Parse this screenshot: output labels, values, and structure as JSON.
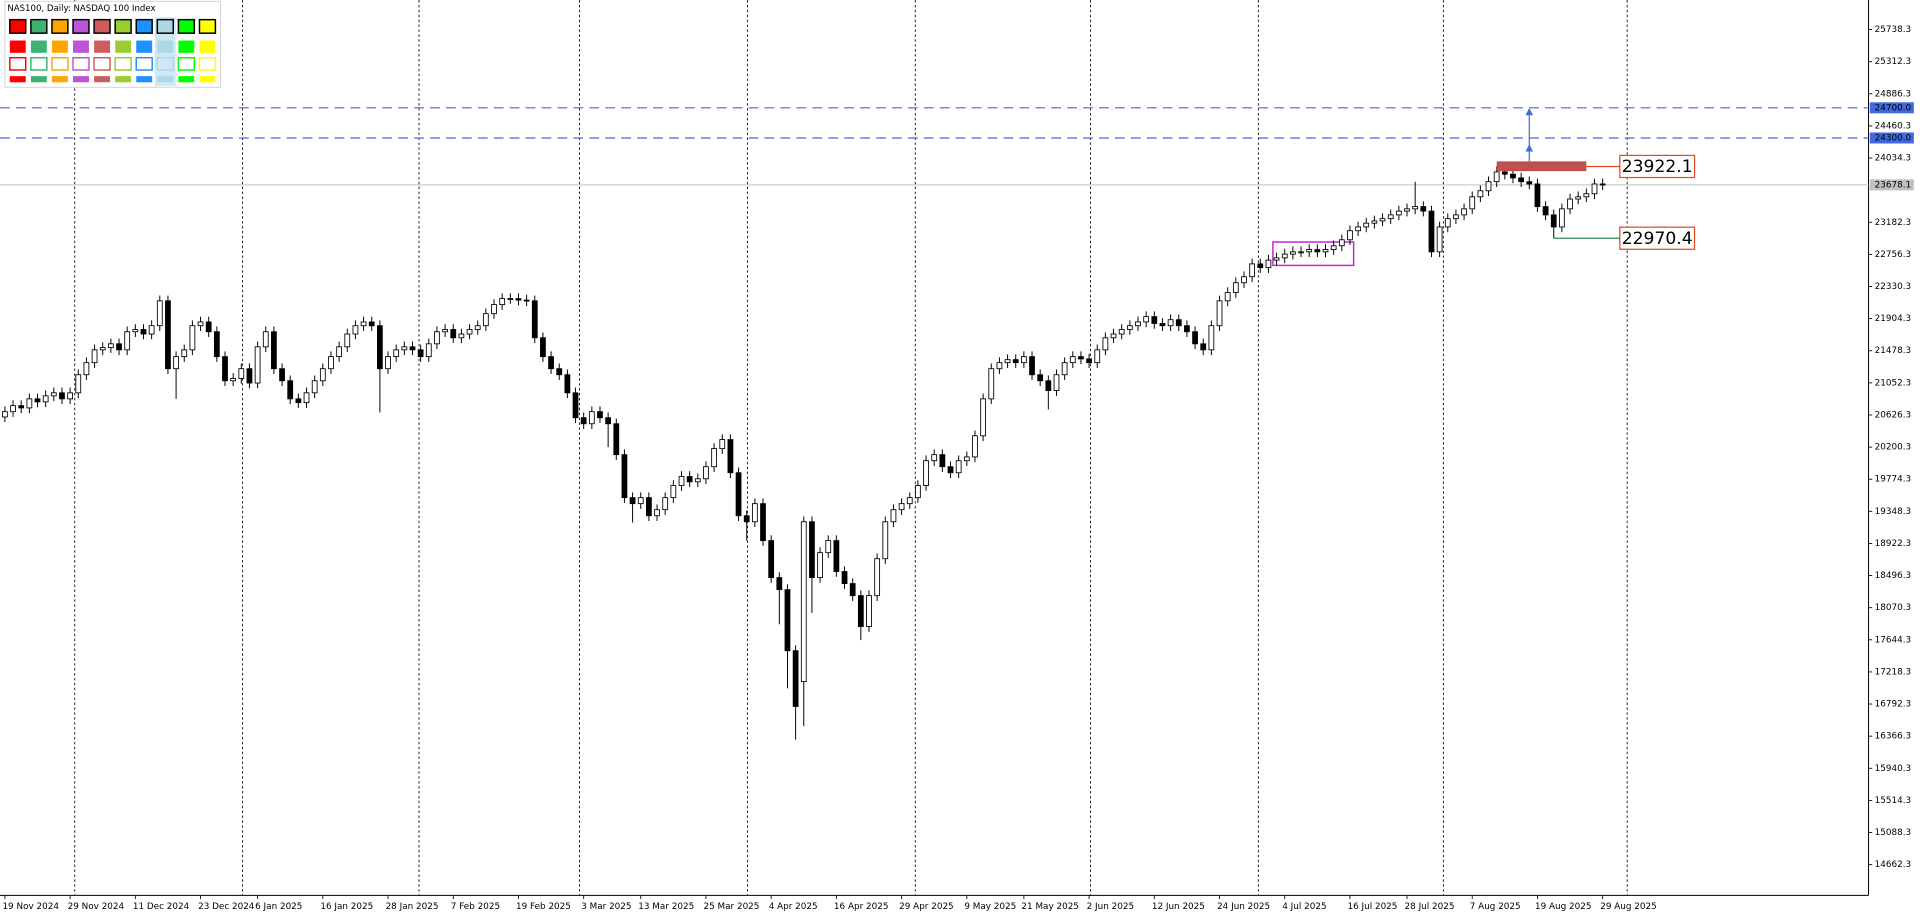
{
  "chart_data": {
    "type": "candlestick",
    "title": "NAS100, Daily: NASDAQ 100 Index",
    "categories": [
      "19 Nov 2024",
      null,
      null,
      null,
      null,
      null,
      null,
      null,
      "29 Nov 2024",
      null,
      null,
      null,
      null,
      null,
      null,
      null,
      "11 Dec 2024",
      null,
      null,
      null,
      null,
      null,
      null,
      null,
      "23 Dec 2024",
      null,
      null,
      null,
      null,
      null,
      null,
      "6 Jan 2025",
      null,
      null,
      null,
      null,
      null,
      null,
      null,
      "16 Jan 2025",
      null,
      null,
      null,
      null,
      null,
      null,
      null,
      "28 Jan 2025",
      null,
      null,
      null,
      null,
      null,
      null,
      null,
      "7 Feb 2025",
      null,
      null,
      null,
      null,
      null,
      null,
      null,
      "19 Feb 2025",
      null,
      null,
      null,
      null,
      null,
      null,
      null,
      "3 Mar 2025",
      null,
      null,
      null,
      null,
      null,
      null,
      "13 Mar 2025",
      null,
      null,
      null,
      null,
      null,
      null,
      null,
      "25 Mar 2025",
      null,
      null,
      null,
      null,
      null,
      null,
      null,
      "4 Apr 2025",
      null,
      null,
      null,
      null,
      null,
      null,
      null,
      "16 Apr 2025",
      null,
      null,
      null,
      null,
      null,
      null,
      null,
      "29 Apr 2025",
      null,
      null,
      null,
      null,
      null,
      null,
      null,
      "9 May 2025",
      null,
      null,
      null,
      null,
      null,
      null,
      "21 May 2025",
      null,
      null,
      null,
      null,
      null,
      null,
      null,
      "2 Jun 2025",
      null,
      null,
      null,
      null,
      null,
      null,
      null,
      "12 Jun 2025",
      null,
      null,
      null,
      null,
      null,
      null,
      null,
      "24 Jun 2025",
      null,
      null,
      null,
      null,
      null,
      null,
      null,
      "4 Jul 2025",
      null,
      null,
      null,
      null,
      null,
      null,
      null,
      "16 Jul 2025",
      null,
      null,
      null,
      null,
      null,
      null,
      "28 Jul 2025",
      null,
      null,
      null,
      null,
      null,
      null,
      null,
      "7 Aug 2025",
      null,
      null,
      null,
      null,
      null,
      null,
      null,
      "19 Aug 2025",
      null,
      null,
      null,
      null,
      null,
      null,
      null,
      "29 Aug 2025"
    ],
    "open": [
      20600,
      20670,
      20750,
      20720,
      20840,
      20800,
      20880,
      20920,
      20840,
      20920,
      21160,
      21320,
      21490,
      21520,
      21570,
      21490,
      21730,
      21760,
      21700,
      21810,
      22140,
      21240,
      21400,
      21490,
      21810,
      21860,
      21730,
      21400,
      21080,
      21110,
      21240,
      21050,
      21530,
      21730,
      21240,
      21080,
      20840,
      20790,
      20920,
      21080,
      21240,
      21400,
      21530,
      21700,
      21810,
      21860,
      21810,
      21240,
      21400,
      21490,
      21530,
      21490,
      21400,
      21570,
      21730,
      21760,
      21650,
      21700,
      21760,
      21810,
      21970,
      22090,
      22170,
      22170,
      22150,
      22140,
      21650,
      21400,
      21240,
      21160,
      20920,
      20590,
      20510,
      20670,
      20590,
      20510,
      20100,
      19530,
      19450,
      19530,
      19290,
      19370,
      19530,
      19690,
      19810,
      19740,
      19780,
      19940,
      20180,
      20300,
      19860,
      19290,
      19210,
      19450,
      18960,
      18470,
      18310,
      17500,
      17090,
      19210,
      18470,
      18800,
      18960,
      18550,
      18390,
      18230,
      17820,
      18230,
      18720,
      19210,
      19370,
      19450,
      19530,
      19690,
      20020,
      20100,
      19940,
      19860,
      20020,
      20070,
      20350,
      20840,
      21240,
      21320,
      21360,
      21320,
      21400,
      21160,
      21080,
      20950,
      21160,
      21320,
      21400,
      21370,
      21320,
      21490,
      21650,
      21700,
      21760,
      21810,
      21860,
      21930,
      21840,
      21810,
      21890,
      21810,
      21730,
      21570,
      21490,
      21810,
      22140,
      22250,
      22380,
      22460,
      22630,
      22580,
      22680,
      22710,
      22760,
      22790,
      22790,
      22820,
      22790,
      22820,
      22870,
      22950,
      23070,
      23120,
      23170,
      23200,
      23230,
      23280,
      23330,
      23360,
      23390,
      23330,
      22790,
      23120,
      23230,
      23280,
      23360,
      23520,
      23600,
      23720,
      23850,
      23820,
      23770,
      23720,
      23690,
      23390,
      23280,
      23120,
      23360,
      23490,
      23520,
      23560,
      23690
    ],
    "high": [
      20740,
      20820,
      20820,
      20910,
      20910,
      20950,
      20990,
      20990,
      20990,
      21230,
      21390,
      21560,
      21590,
      21640,
      21640,
      21800,
      21830,
      21830,
      21880,
      22210,
      22210,
      21470,
      21560,
      21880,
      21930,
      21930,
      21800,
      21470,
      21180,
      21310,
      21310,
      21600,
      21800,
      21800,
      21310,
      21150,
      20910,
      20990,
      21150,
      21310,
      21470,
      21600,
      21770,
      21880,
      21930,
      21930,
      21880,
      21470,
      21560,
      21600,
      21600,
      21560,
      21640,
      21800,
      21830,
      21830,
      21770,
      21830,
      21880,
      22040,
      22160,
      22240,
      22240,
      22240,
      22220,
      22210,
      21720,
      21470,
      21310,
      21230,
      20990,
      20660,
      20740,
      20740,
      20660,
      20580,
      20170,
      19600,
      19600,
      19600,
      19440,
      19600,
      19760,
      19880,
      19880,
      19850,
      20010,
      20250,
      20370,
      20370,
      19930,
      19360,
      19520,
      19520,
      19030,
      18540,
      18380,
      17570,
      19280,
      19280,
      18870,
      19030,
      19030,
      18620,
      18460,
      18300,
      18300,
      18790,
      19280,
      19440,
      19520,
      19600,
      19760,
      20090,
      20170,
      20170,
      20010,
      20090,
      20140,
      20420,
      20910,
      21310,
      21390,
      21430,
      21430,
      21470,
      21470,
      21230,
      21150,
      21230,
      21390,
      21470,
      21470,
      21440,
      21560,
      21720,
      21770,
      21830,
      21880,
      21930,
      22000,
      22000,
      21910,
      21960,
      21960,
      21880,
      21800,
      21640,
      21880,
      22210,
      22320,
      22450,
      22530,
      22700,
      22700,
      22750,
      22780,
      22830,
      22860,
      22860,
      22890,
      22890,
      22890,
      22940,
      23020,
      23140,
      23190,
      23240,
      23270,
      23300,
      23350,
      23400,
      23430,
      23720,
      23460,
      23400,
      23190,
      23300,
      23350,
      23430,
      23590,
      23670,
      23790,
      23920,
      23920,
      23890,
      23840,
      23790,
      23760,
      23460,
      23350,
      23430,
      23560,
      23590,
      23630,
      23760,
      23760
    ],
    "low": [
      20530,
      20600,
      20650,
      20650,
      20730,
      20730,
      20810,
      20770,
      20770,
      20850,
      21090,
      21250,
      21420,
      21450,
      21420,
      21420,
      21660,
      21630,
      21630,
      21740,
      21170,
      20840,
      21330,
      21420,
      21740,
      21660,
      21330,
      21010,
      21010,
      21040,
      20980,
      20980,
      21460,
      21170,
      21010,
      20770,
      20720,
      20720,
      20850,
      21010,
      21170,
      21330,
      21460,
      21630,
      21740,
      21740,
      20660,
      21170,
      21330,
      21420,
      21420,
      21330,
      21330,
      21500,
      21660,
      21580,
      21580,
      21630,
      21690,
      21740,
      21900,
      22020,
      22100,
      22080,
      22070,
      21580,
      21330,
      21170,
      21090,
      20850,
      20520,
      20440,
      20440,
      20520,
      20200,
      20030,
      19460,
      19200,
      19380,
      19220,
      19220,
      19300,
      19460,
      19620,
      19670,
      19670,
      19710,
      19870,
      20110,
      19790,
      19220,
      18960,
      19140,
      18890,
      18400,
      17850,
      17000,
      16320,
      16500,
      18000,
      18400,
      18730,
      18480,
      18320,
      18160,
      17640,
      17750,
      18160,
      18650,
      19140,
      19300,
      19380,
      19460,
      19620,
      19950,
      19870,
      19790,
      19790,
      19950,
      20000,
      20280,
      20770,
      21170,
      21250,
      21250,
      21250,
      21090,
      21010,
      20700,
      20880,
      21090,
      21250,
      21300,
      21250,
      21250,
      21420,
      21580,
      21630,
      21690,
      21740,
      21790,
      21770,
      21740,
      21740,
      21740,
      21660,
      21500,
      21420,
      21420,
      21740,
      22070,
      22180,
      22310,
      22390,
      22510,
      22510,
      22610,
      22640,
      22690,
      22720,
      22720,
      22720,
      22720,
      22750,
      22800,
      22880,
      23000,
      23050,
      23100,
      23130,
      23160,
      23210,
      23260,
      23290,
      23260,
      22720,
      22720,
      23050,
      23160,
      23210,
      23290,
      23450,
      23530,
      23650,
      23750,
      23700,
      23650,
      23620,
      23320,
      23210,
      22970,
      23050,
      23290,
      23420,
      23450,
      23490,
      23610
    ],
    "close": [
      20670,
      20750,
      20720,
      20840,
      20800,
      20880,
      20920,
      20840,
      20920,
      21160,
      21320,
      21490,
      21520,
      21570,
      21490,
      21730,
      21760,
      21700,
      21810,
      22140,
      21240,
      21400,
      21490,
      21810,
      21860,
      21730,
      21400,
      21080,
      21110,
      21240,
      21050,
      21530,
      21730,
      21240,
      21080,
      20840,
      20790,
      20920,
      21080,
      21240,
      21400,
      21530,
      21700,
      21810,
      21860,
      21810,
      21240,
      21400,
      21490,
      21530,
      21490,
      21400,
      21570,
      21730,
      21760,
      21650,
      21700,
      21760,
      21810,
      21970,
      22090,
      22170,
      22170,
      22150,
      22140,
      21650,
      21400,
      21240,
      21160,
      20920,
      20590,
      20510,
      20670,
      20590,
      20510,
      20100,
      19530,
      19450,
      19530,
      19290,
      19370,
      19530,
      19690,
      19810,
      19740,
      19780,
      19940,
      20180,
      20300,
      19860,
      19290,
      19210,
      19450,
      18960,
      18470,
      18310,
      17500,
      16760,
      19210,
      18470,
      18800,
      18960,
      18550,
      18390,
      18230,
      17820,
      18230,
      18720,
      19210,
      19370,
      19450,
      19530,
      19690,
      20020,
      20100,
      19940,
      19860,
      20020,
      20070,
      20350,
      20840,
      21240,
      21320,
      21360,
      21320,
      21400,
      21160,
      21080,
      20950,
      21160,
      21320,
      21400,
      21370,
      21320,
      21490,
      21650,
      21700,
      21760,
      21810,
      21860,
      21930,
      21840,
      21810,
      21890,
      21810,
      21730,
      21570,
      21490,
      21810,
      22140,
      22250,
      22380,
      22460,
      22630,
      22580,
      22680,
      22710,
      22760,
      22790,
      22790,
      22820,
      22790,
      22820,
      22870,
      22950,
      23070,
      23120,
      23170,
      23200,
      23230,
      23280,
      23330,
      23360,
      23390,
      23330,
      22790,
      23120,
      23230,
      23280,
      23360,
      23520,
      23600,
      23720,
      23850,
      23820,
      23770,
      23720,
      23690,
      23390,
      23280,
      23120,
      23360,
      23490,
      23520,
      23560,
      23690,
      23678.1
    ],
    "up_color": "#ffffff",
    "down_color": "#000000",
    "ylim": [
      14255,
      26130
    ],
    "yticks": [
      25738.3,
      25312.3,
      24886.3,
      24460.3,
      24034.3,
      23182.3,
      22756.3,
      22330.3,
      21904.3,
      21478.3,
      21052.3,
      20626.3,
      20200.3,
      19774.3,
      19348.3,
      18922.3,
      18496.3,
      18070.3,
      17644.3,
      17218.3,
      16792.3,
      16366.3,
      15940.3,
      15514.3,
      15088.3,
      14662.3
    ],
    "current_price": 23678.1,
    "levels": [
      {
        "value": 24700,
        "label": "24700.0"
      },
      {
        "value": 24300,
        "label": "24300.0"
      }
    ],
    "level_color": "#4169e1",
    "zone": {
      "from": 183,
      "to": 194,
      "low": 23860,
      "high": 23990,
      "color": "#c0504d"
    },
    "arrow": {
      "at": 187,
      "from": 23990,
      "to": 24700,
      "color": "#4169e1"
    },
    "box": {
      "from": 156,
      "to": 165,
      "low": 22610,
      "high": 22920,
      "color": "#c026d3"
    },
    "price_labels": [
      {
        "value": 23922.1,
        "from": 194,
        "color": "#e8491d",
        "line_color": "#e8491d"
      },
      {
        "value": 22970.4,
        "from": 190,
        "color": "#e8491d",
        "line_color": "#2e8b57"
      }
    ]
  }
}
